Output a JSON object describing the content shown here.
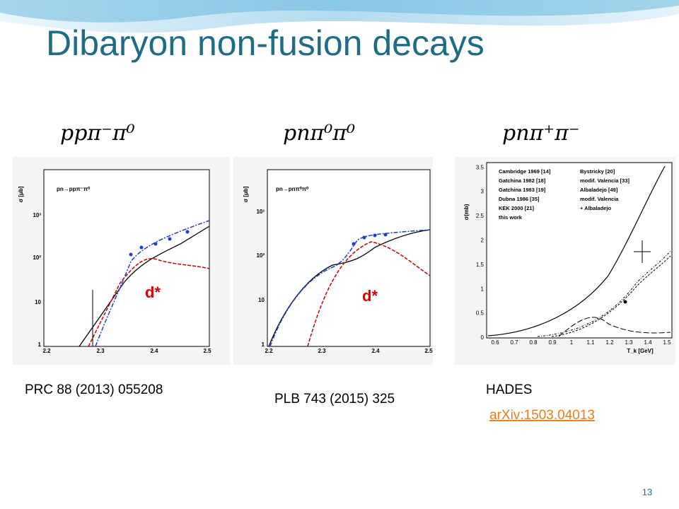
{
  "title": "Dibaryon non-fusion decays",
  "panels": [
    {
      "heading": "ppπ⁻π⁰",
      "reaction": "pn→ppπ⁻π⁰",
      "y_label": "σ [μb]",
      "yticks": [
        "10³",
        "10²",
        "10",
        "1"
      ],
      "xticks": [
        "2.2",
        "2.3",
        "2.4",
        "2.5"
      ],
      "annotation": "d*",
      "reference": "PRC 88 (2013) 055208"
    },
    {
      "heading": "pnπ⁰π⁰",
      "reaction": "pn→pnπ⁰π⁰",
      "y_label": "σ [μb]",
      "yticks": [
        "10³",
        "10²",
        "10",
        "1"
      ],
      "xticks": [
        "2.2",
        "2.3",
        "2.4",
        "2.5"
      ],
      "annotation": "d*",
      "reference": "PLB 743 (2015) 325"
    },
    {
      "heading": "pnπ⁺π⁻",
      "y_label": "σ(mb)",
      "x_label": "T_k [GeV]",
      "yticks": [
        "0",
        "0.5",
        "1",
        "1.5",
        "2",
        "2.5",
        "3",
        "3.5"
      ],
      "xticks": [
        "0.6",
        "0.7",
        "0.8",
        "0.9",
        "1",
        "1.1",
        "1.2",
        "1.3",
        "1.4",
        "1.5"
      ],
      "legend": [
        "Cambridge 1969 [14]",
        "Gatchina 1982 [18]",
        "Gatchina 1983 [19]",
        "Dubna 1986 [35]",
        "KEK 2000 [21]",
        "this work",
        "Bystricky [20]",
        "modif. Valencia [33]",
        "Albaladejo [49]",
        "modif. Valencia",
        "+ Albaladejo"
      ],
      "reference": "HADES",
      "link": "arXiv:1503.04013"
    }
  ],
  "page_number": "13"
}
